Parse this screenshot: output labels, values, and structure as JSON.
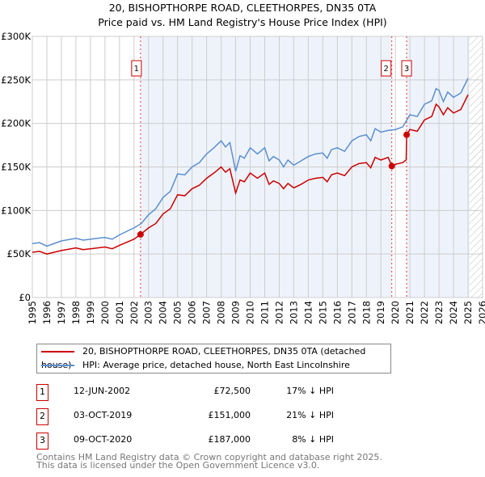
{
  "title": "20, BISHOPTHORPE ROAD, CLEETHORPES, DN35 0TA",
  "subtitle": "Price paid vs. HM Land Registry's House Price Index (HPI)",
  "colors": {
    "price": "#cc0000",
    "hpi": "#5b8fd0",
    "shade": "#eef3fb"
  },
  "chart_data": {
    "type": "line",
    "title": "20, BISHOPTHORPE ROAD, CLEETHORPES, DN35 0TA",
    "xlim": [
      1995,
      2026
    ],
    "ylim": [
      0,
      300000
    ],
    "x_ticks": [
      "1995",
      "1996",
      "1997",
      "1998",
      "1999",
      "2000",
      "2001",
      "2002",
      "2003",
      "2004",
      "2005",
      "2006",
      "2007",
      "2008",
      "2009",
      "2010",
      "2011",
      "2012",
      "2013",
      "2014",
      "2015",
      "2016",
      "2017",
      "2018",
      "2019",
      "2020",
      "2021",
      "2022",
      "2023",
      "2024",
      "2025",
      "2026"
    ],
    "y_ticks": [
      {
        "v": 0,
        "label": "£0"
      },
      {
        "v": 50000,
        "label": "£50K"
      },
      {
        "v": 100000,
        "label": "£100K"
      },
      {
        "v": 150000,
        "label": "£150K"
      },
      {
        "v": 200000,
        "label": "£200K"
      },
      {
        "v": 250000,
        "label": "£250K"
      },
      {
        "v": 300000,
        "label": "£300K"
      }
    ],
    "grid": true,
    "forecast_from": 2025.1,
    "series": [
      {
        "name": "20, BISHOPTHORPE ROAD, CLEETHORPES, DN35 0TA (detached house)",
        "color": "#cc0000",
        "x": [
          1995,
          1995.5,
          1996,
          1996.5,
          1997,
          1998,
          1998.5,
          1999,
          2000,
          2000.5,
          2001,
          2002,
          2002.45,
          2003,
          2003.5,
          2004,
          2004.5,
          2005,
          2005.5,
          2006,
          2006.5,
          2007,
          2007.5,
          2008,
          2008.3,
          2008.6,
          2009,
          2009.3,
          2009.6,
          2010,
          2010.5,
          2011,
          2011.3,
          2011.6,
          2012,
          2012.3,
          2012.6,
          2013,
          2013.5,
          2014,
          2014.5,
          2015,
          2015.3,
          2015.6,
          2016,
          2016.5,
          2017,
          2017.5,
          2018,
          2018.3,
          2018.6,
          2019,
          2019.5,
          2019.75,
          2020,
          2020.5,
          2020.74,
          2020.77,
          2021,
          2021.5,
          2022,
          2022.5,
          2022.8,
          2023,
          2023.3,
          2023.6,
          2024,
          2024.5,
          2025
        ],
        "y": [
          52000,
          53000,
          50000,
          52000,
          54000,
          57000,
          55000,
          56000,
          58000,
          56000,
          60000,
          67000,
          72500,
          80000,
          85000,
          96000,
          102000,
          118000,
          117000,
          125000,
          129000,
          137000,
          143000,
          150000,
          144000,
          148000,
          120000,
          135000,
          133000,
          143000,
          137000,
          143000,
          130000,
          134000,
          131000,
          125000,
          131000,
          126000,
          130000,
          135000,
          137000,
          138000,
          133000,
          141000,
          143000,
          140000,
          150000,
          154000,
          155000,
          149000,
          161000,
          158000,
          161000,
          151000,
          153000,
          155000,
          158000,
          187000,
          193000,
          191000,
          204000,
          208000,
          222000,
          219000,
          210000,
          218000,
          212000,
          216000,
          233000
        ]
      },
      {
        "name": "HPI: Average price, detached house, North East Lincolnshire",
        "color": "#5b8fd0",
        "x": [
          1995,
          1995.5,
          1996,
          1996.5,
          1997,
          1998,
          1998.5,
          1999,
          2000,
          2000.5,
          2001,
          2002,
          2002.5,
          2003,
          2003.5,
          2004,
          2004.5,
          2005,
          2005.5,
          2006,
          2006.5,
          2007,
          2007.5,
          2008,
          2008.3,
          2008.6,
          2009,
          2009.3,
          2009.6,
          2010,
          2010.5,
          2011,
          2011.3,
          2011.6,
          2012,
          2012.3,
          2012.6,
          2013,
          2013.5,
          2014,
          2014.5,
          2015,
          2015.3,
          2015.6,
          2016,
          2016.5,
          2017,
          2017.5,
          2018,
          2018.3,
          2018.6,
          2019,
          2019.5,
          2020,
          2020.5,
          2021,
          2021.5,
          2022,
          2022.5,
          2022.8,
          2023,
          2023.3,
          2023.6,
          2024,
          2024.5,
          2025
        ],
        "y": [
          62000,
          63000,
          59000,
          62000,
          65000,
          68000,
          66000,
          67000,
          69000,
          67000,
          72000,
          80000,
          85000,
          95000,
          102000,
          115000,
          122000,
          142000,
          141000,
          150000,
          155000,
          165000,
          172000,
          180000,
          173000,
          178000,
          145000,
          163000,
          160000,
          172000,
          165000,
          172000,
          157000,
          162000,
          158000,
          150000,
          158000,
          152000,
          157000,
          162000,
          165000,
          166000,
          160000,
          170000,
          172000,
          168000,
          180000,
          185000,
          187000,
          180000,
          194000,
          190000,
          192000,
          193000,
          196000,
          210000,
          208000,
          222000,
          226000,
          240000,
          238000,
          225000,
          236000,
          230000,
          235000,
          252000
        ]
      }
    ],
    "sales": [
      {
        "n": "1",
        "x": 2002.45,
        "y": 72500
      },
      {
        "n": "2",
        "x": 2019.75,
        "y": 151000
      },
      {
        "n": "3",
        "x": 2020.77,
        "y": 187000
      }
    ]
  },
  "legend": [
    "20, BISHOPTHORPE ROAD, CLEETHORPES, DN35 0TA (detached house)",
    "HPI: Average price, detached house, North East Lincolnshire"
  ],
  "transactions": [
    {
      "n": "1",
      "date": "12-JUN-2002",
      "price": "£72,500",
      "delta": "17% ↓ HPI"
    },
    {
      "n": "2",
      "date": "03-OCT-2019",
      "price": "£151,000",
      "delta": "21% ↓ HPI"
    },
    {
      "n": "3",
      "date": "09-OCT-2020",
      "price": "£187,000",
      "delta": "8% ↓ HPI"
    }
  ],
  "footer": [
    "Contains HM Land Registry data © Crown copyright and database right 2025.",
    "This data is licensed under the Open Government Licence v3.0."
  ]
}
